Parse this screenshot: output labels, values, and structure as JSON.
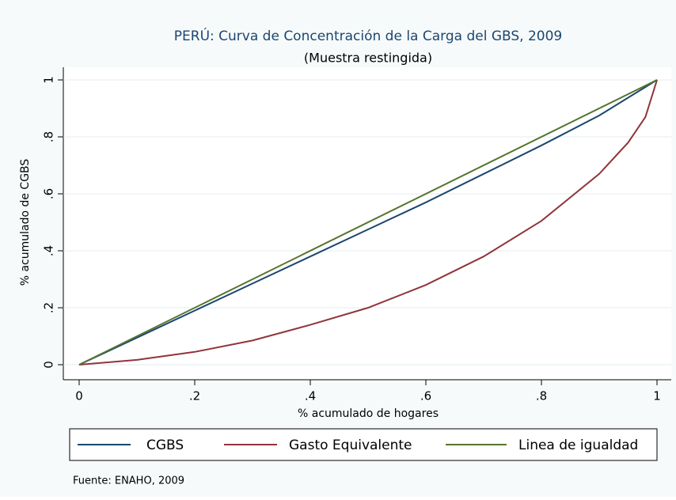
{
  "chart_data": {
    "type": "line",
    "title": "PERÚ: Curva de Concentración de la Carga del GBS, 2009",
    "subtitle": "(Muestra restingida)",
    "x_label": "% acumulado de hogares",
    "y_label": "% acumulado de CGBS",
    "note": "Fuente:  ENAHO, 2009",
    "xlim": [
      0,
      1
    ],
    "ylim": [
      0,
      1
    ],
    "xticks": [
      0,
      {
        "value": 0.2,
        "label": ".2"
      },
      {
        "value": 0.4,
        "label": ".4"
      },
      {
        "value": 0.6,
        "label": ".6"
      },
      {
        "value": 0.8,
        "label": ".8"
      },
      1
    ],
    "yticks": [
      0,
      {
        "value": 0.2,
        "label": ".2"
      },
      {
        "value": 0.4,
        "label": ".4"
      },
      {
        "value": 0.6,
        "label": ".6"
      },
      {
        "value": 0.8,
        "label": ".8"
      },
      1
    ],
    "grid": true,
    "legend": "bottom",
    "series": [
      {
        "name": "CGBS",
        "color": "#1a476f",
        "x": [
          0,
          0.1,
          0.2,
          0.3,
          0.4,
          0.5,
          0.6,
          0.7,
          0.8,
          0.9,
          1
        ],
        "values": [
          0,
          0.095,
          0.19,
          0.285,
          0.38,
          0.475,
          0.57,
          0.67,
          0.77,
          0.875,
          1
        ]
      },
      {
        "name": "Gasto Equivalente",
        "color": "#90353b",
        "x": [
          0,
          0.1,
          0.2,
          0.3,
          0.4,
          0.5,
          0.6,
          0.7,
          0.8,
          0.9,
          0.95,
          0.98,
          1
        ],
        "values": [
          0,
          0.017,
          0.045,
          0.085,
          0.14,
          0.2,
          0.28,
          0.38,
          0.505,
          0.67,
          0.78,
          0.87,
          1
        ]
      },
      {
        "name": "Linea de igualdad",
        "color": "#55752f",
        "x": [
          0,
          1
        ],
        "values": [
          0,
          1
        ]
      }
    ]
  }
}
